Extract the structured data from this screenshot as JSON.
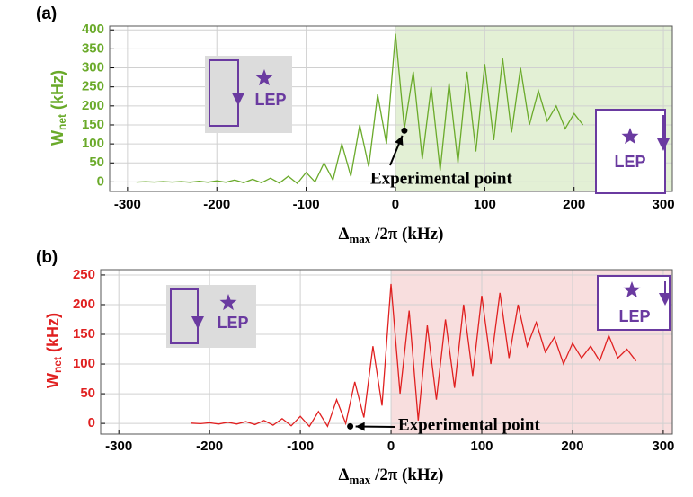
{
  "chart_data": [
    {
      "type": "line",
      "panel_label": "(a)",
      "color": "#6aaa2a",
      "shade_color": "#e3f0d5",
      "shade_xlim": [
        0,
        310
      ],
      "ylabel": {
        "main": "W",
        "sub": "net",
        "unit": " (kHz)"
      },
      "xlabel": {
        "main": "Δ",
        "sub": "max",
        "unit": " /2π (kHz)"
      },
      "xlim": [
        -320,
        310
      ],
      "xticks": [
        -300,
        -200,
        -100,
        0,
        100,
        200,
        300
      ],
      "ylim": [
        -25,
        410
      ],
      "yticks": [
        0,
        50,
        100,
        150,
        200,
        250,
        300,
        350,
        400
      ],
      "grid": true,
      "x": [
        -290,
        -280,
        -270,
        -260,
        -250,
        -240,
        -230,
        -220,
        -210,
        -200,
        -190,
        -180,
        -170,
        -160,
        -150,
        -140,
        -130,
        -120,
        -110,
        -100,
        -90,
        -80,
        -70,
        -60,
        -50,
        -40,
        -30,
        -20,
        -10,
        0,
        10,
        20,
        30,
        40,
        50,
        60,
        70,
        80,
        90,
        100,
        110,
        120,
        130,
        140,
        150,
        160,
        170,
        180,
        190,
        200,
        210
      ],
      "values": [
        -0.5,
        0.5,
        -0.5,
        1,
        -0.5,
        1,
        -1,
        2,
        -1,
        3,
        -1,
        5,
        -2,
        7,
        -2,
        10,
        -3,
        15,
        -4,
        25,
        0,
        50,
        5,
        100,
        15,
        150,
        40,
        230,
        100,
        390,
        140,
        290,
        60,
        250,
        30,
        260,
        50,
        290,
        80,
        310,
        110,
        325,
        130,
        300,
        150,
        240,
        160,
        200,
        140,
        180,
        150
      ],
      "annotation": {
        "text": "Experimental point",
        "x": 10,
        "y": 135
      },
      "icons": [
        {
          "label": "LEP"
        },
        {
          "label": "LEP"
        }
      ]
    },
    {
      "type": "line",
      "panel_label": "(b)",
      "color": "#e02020",
      "shade_color": "#f8dede",
      "shade_xlim": [
        0,
        310
      ],
      "ylabel": {
        "main": "W",
        "sub": "net",
        "unit": " (kHz)"
      },
      "xlabel": {
        "main": "Δ",
        "sub": "max",
        "unit": " /2π (kHz)"
      },
      "xlim": [
        -320,
        310
      ],
      "xticks": [
        -300,
        -200,
        -100,
        0,
        100,
        200,
        300
      ],
      "ylim": [
        -18,
        259
      ],
      "yticks": [
        0,
        50,
        100,
        150,
        200,
        250
      ],
      "grid": true,
      "x": [
        -220,
        -210,
        -200,
        -190,
        -180,
        -170,
        -160,
        -150,
        -140,
        -130,
        -120,
        -110,
        -100,
        -90,
        -80,
        -70,
        -60,
        -50,
        -40,
        -30,
        -20,
        -10,
        0,
        10,
        20,
        30,
        40,
        50,
        60,
        70,
        80,
        90,
        100,
        110,
        120,
        130,
        140,
        150,
        160,
        170,
        180,
        190,
        200,
        210,
        220,
        230,
        240,
        250,
        260,
        270
      ],
      "values": [
        0.5,
        -0.5,
        1,
        -1,
        2,
        -1,
        3,
        -2,
        5,
        -3,
        8,
        -4,
        12,
        -5,
        20,
        -5,
        40,
        0,
        70,
        10,
        130,
        30,
        235,
        50,
        190,
        5,
        165,
        40,
        175,
        60,
        200,
        80,
        215,
        100,
        220,
        110,
        200,
        130,
        170,
        120,
        145,
        100,
        135,
        110,
        130,
        105,
        148,
        110,
        125,
        105
      ],
      "annotation": {
        "text": "Experimental point",
        "x": -45,
        "y": -5
      },
      "icons": [
        {
          "label": "LEP"
        },
        {
          "label": "LEP"
        }
      ]
    }
  ]
}
